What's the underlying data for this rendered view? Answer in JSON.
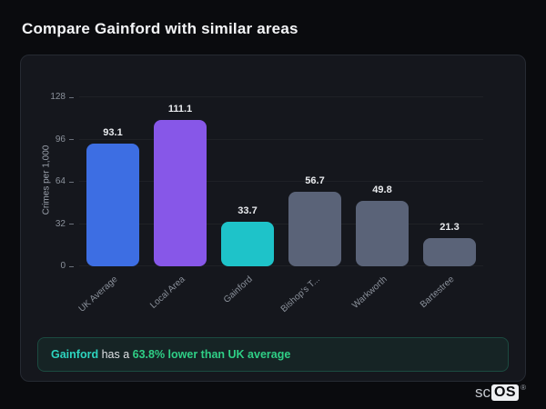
{
  "page": {
    "title": "Compare Gainford with similar areas"
  },
  "chart_data": {
    "type": "bar",
    "title": "",
    "xlabel": "",
    "ylabel": "Crimes per 1,000",
    "categories": [
      "UK Average",
      "Local Area",
      "Gainford",
      "Bishop's T...",
      "Warkworth",
      "Bartestree"
    ],
    "values": [
      93.1,
      111.1,
      33.7,
      56.7,
      49.8,
      21.3
    ],
    "value_labels": [
      "93.1",
      "111.1",
      "33.7",
      "56.7",
      "49.8",
      "21.3"
    ],
    "bar_colors": [
      "#3d6ee3",
      "#8757e8",
      "#1ec3c9",
      "#5a6378",
      "#5a6378",
      "#5a6378"
    ],
    "yticks": [
      0,
      32,
      64,
      96,
      128
    ],
    "ylim": [
      0,
      131
    ],
    "grid": true,
    "legend": "none"
  },
  "summary": {
    "area_name": "Gainford",
    "connector": " has a ",
    "highlight": "63.8% lower than UK average",
    "accent_color": "#2dd4bf",
    "highlight_color": "#2fcf86"
  },
  "watermark": {
    "prefix": "sc",
    "suffix": "OS",
    "registered": "®"
  }
}
